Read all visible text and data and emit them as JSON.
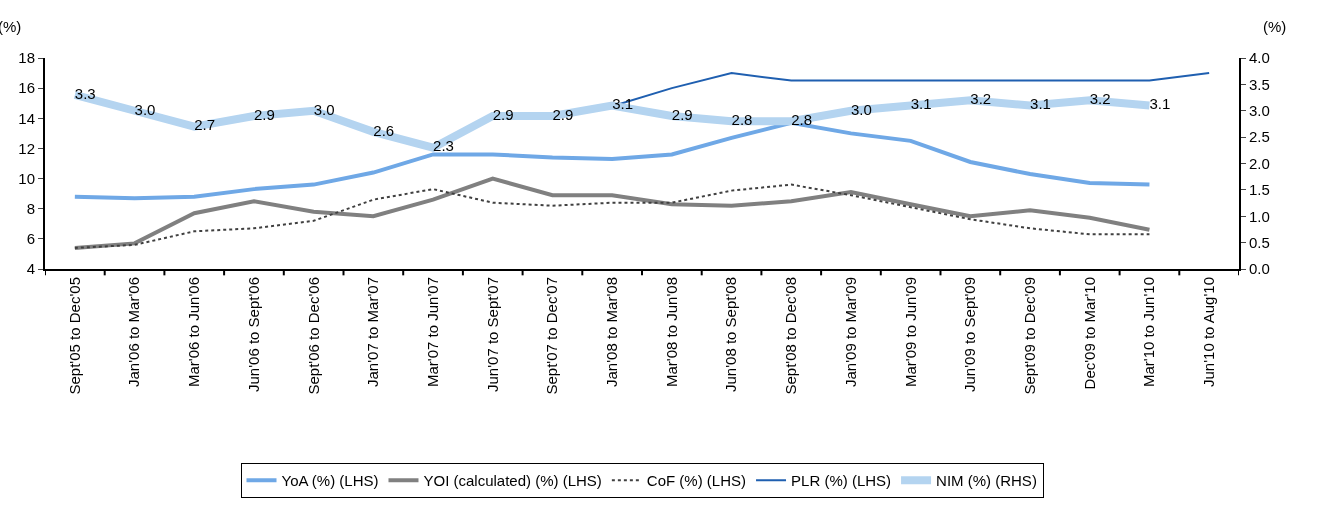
{
  "chart_data": {
    "type": "line",
    "ylabel": "(%)",
    "y2label": "(%)",
    "categories": [
      "Sept'05 to Dec'05",
      "Jan'06 to Mar'06",
      "Mar'06 to Jun'06",
      "Jun'06 to Sept'06",
      "Sept'06 to Dec'06",
      "Jan'07 to Mar'07",
      "Mar'07 to Jun'07",
      "Jun'07 to Sept'07",
      "Sept'07 to Dec'07",
      "Jan'08 to Mar'08",
      "Mar'08 to Jun'08",
      "Jun'08 to Sept'08",
      "Sept'08 to Dec'08",
      "Jan'09 to Mar'09",
      "Mar'09 to Jun'09",
      "Jun'09 to Sept'09",
      "Sept'09 to Dec'09",
      "Dec'09 to Mar'10",
      "Mar'10 to Jun'10",
      "Jun'10 to Aug'10"
    ],
    "series": [
      {
        "name": "YoA (%) (LHS)",
        "color": "#6fa8e6",
        "values": [
          8.8,
          8.7,
          8.8,
          9.3,
          9.6,
          10.4,
          11.6,
          11.6,
          11.4,
          11.3,
          11.6,
          12.7,
          13.7,
          13.0,
          12.5,
          11.1,
          10.3,
          9.7,
          9.6,
          null
        ]
      },
      {
        "name": "YOI (calculated) (%) (LHS)",
        "color": "#808080",
        "values": [
          5.4,
          5.7,
          7.7,
          8.5,
          7.8,
          7.5,
          8.6,
          10.0,
          8.9,
          8.9,
          8.3,
          8.2,
          8.5,
          9.1,
          8.3,
          7.5,
          7.9,
          7.4,
          6.6,
          null
        ]
      },
      {
        "name": "CoF (%) (LHS)",
        "color": "#404040",
        "line_style": "dotted",
        "values": [
          5.4,
          5.6,
          6.5,
          6.7,
          7.2,
          8.6,
          9.3,
          8.4,
          8.2,
          8.4,
          8.4,
          9.2,
          9.6,
          8.9,
          8.1,
          7.3,
          6.7,
          6.3,
          6.3,
          null
        ]
      },
      {
        "name": "PLR (%) (LHS)",
        "color": "#1f5fb0",
        "values": [
          null,
          null,
          null,
          null,
          null,
          null,
          null,
          null,
          null,
          14.8,
          16.0,
          17.0,
          16.5,
          16.5,
          16.5,
          16.5,
          16.5,
          16.5,
          16.5,
          17.0
        ]
      },
      {
        "name": "NIM (%) (RHS)",
        "color": "#b4d4f0",
        "axis": "y2",
        "value_labels": [
          "3.3",
          "3.0",
          "2.7",
          "2.9",
          "3.0",
          "2.6",
          "2.3",
          "2.9",
          "2.9",
          "3.1",
          "2.9",
          "2.8",
          "2.8",
          "3.0",
          "3.1",
          "3.2",
          "3.1",
          "3.2",
          "3.1",
          null
        ],
        "values": [
          3.3,
          3.0,
          2.7,
          2.9,
          3.0,
          2.6,
          2.3,
          2.9,
          2.9,
          3.1,
          2.9,
          2.8,
          2.8,
          3.0,
          3.1,
          3.2,
          3.1,
          3.2,
          3.1,
          null
        ]
      }
    ],
    "ylim": [
      4,
      18
    ],
    "yticks": [
      4,
      6,
      8,
      10,
      12,
      14,
      16,
      18
    ],
    "y2lim": [
      0,
      4
    ],
    "y2ticks": [
      "0.0",
      "0.5",
      "1.0",
      "1.5",
      "2.0",
      "2.5",
      "3.0",
      "3.5",
      "4.0"
    ],
    "grid": false,
    "legend": "bottom",
    "marker": "none",
    "line_style": "solid"
  }
}
